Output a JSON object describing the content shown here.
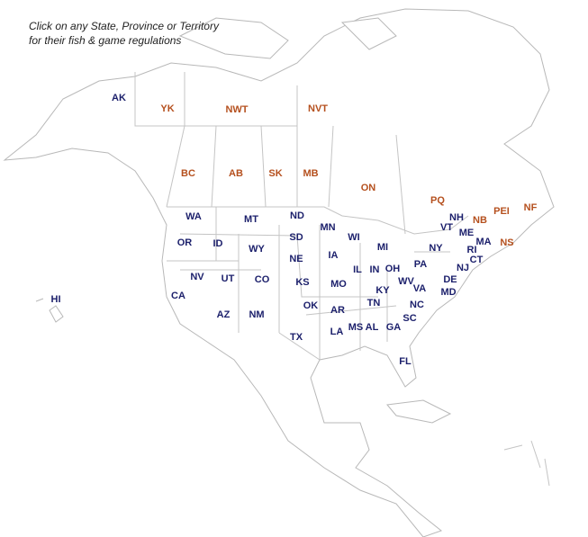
{
  "instruction": [
    "Click on any State, Province or Territory",
    "for their fish & game regulations"
  ],
  "us_states": [
    "AK",
    "HI",
    "WA",
    "OR",
    "ID",
    "MT",
    "WY",
    "NV",
    "UT",
    "CO",
    "CA",
    "AZ",
    "NM",
    "ND",
    "SD",
    "NE",
    "KS",
    "OK",
    "TX",
    "MN",
    "IA",
    "MO",
    "AR",
    "LA",
    "WI",
    "MI",
    "IL",
    "IN",
    "OH",
    "KY",
    "TN",
    "MS",
    "AL",
    "GA",
    "FL",
    "WV",
    "VA",
    "NC",
    "SC",
    "PA",
    "NY",
    "VT",
    "NH",
    "ME",
    "MA",
    "RI",
    "CT",
    "NJ",
    "DE",
    "MD"
  ],
  "provinces": [
    "YK",
    "NWT",
    "NVT",
    "BC",
    "AB",
    "SK",
    "MB",
    "ON",
    "PQ",
    "NB",
    "PEI",
    "NF",
    "NS"
  ]
}
